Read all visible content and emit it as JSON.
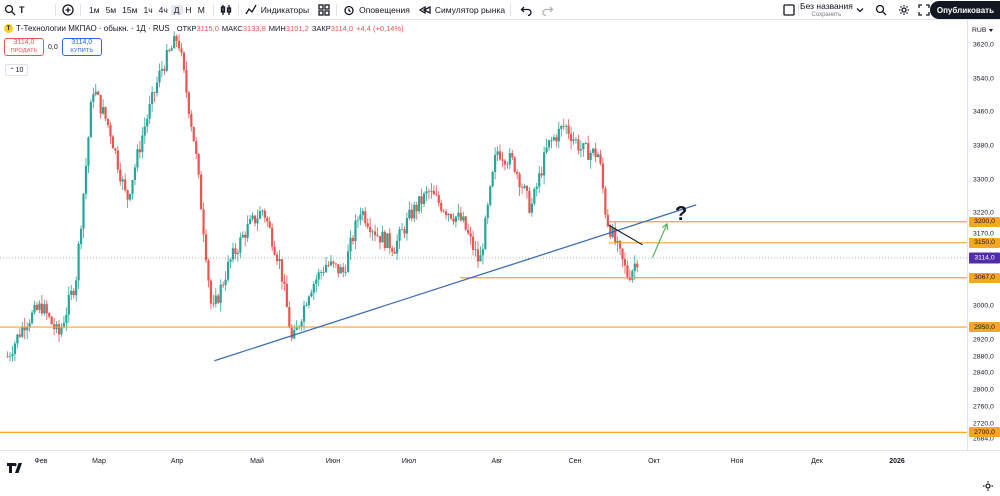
{
  "toolbar": {
    "symbol": "T",
    "timeframes": [
      "1м",
      "5м",
      "15м",
      "1ч",
      "4ч",
      "Д",
      "Н",
      "М"
    ],
    "active_timeframe": "Д",
    "indicators_label": "Индикаторы",
    "alerts_label": "Оповещения",
    "replay_label": "Симулятор рынка",
    "layout_name": "Без названия",
    "layout_status": "Сохранить",
    "publish_label": "Опубликовать"
  },
  "legend": {
    "title": "Т-Технологии МКПАО · обыкн. · 1Д · RUS",
    "open_label": "ОТКР",
    "open": "3115,0",
    "high_label": "МАКС",
    "high": "3133,8",
    "low_label": "МИН",
    "low": "3101,2",
    "close_label": "ЗАКР",
    "close": "3114,0",
    "change": "+4,4 (+0,14%)"
  },
  "trade": {
    "sell_price": "3114,0",
    "sell_label": "ПРОДАТЬ",
    "spread": "0,0",
    "buy_price": "3114,0",
    "buy_label": "КУПИТЬ"
  },
  "indicators_count": "10",
  "price_scale": {
    "currency": "RUB",
    "ticks": [
      "3620,0",
      "3540,0",
      "3460,0",
      "3380,0",
      "3300,0",
      "3220,0",
      "3170,0",
      "3000,0",
      "2920,0",
      "2880,0",
      "2840,0",
      "2800,0",
      "2760,0",
      "2720,0",
      "2684,0"
    ],
    "tick_values": [
      3620,
      3540,
      3460,
      3380,
      3300,
      3220,
      3170,
      3000,
      2920,
      2880,
      2840,
      2800,
      2760,
      2720,
      2684
    ],
    "current_price": "3114,0",
    "current_value": 3114
  },
  "levels": [
    {
      "label": "3200,0",
      "value": 3200
    },
    {
      "label": "3150,0",
      "value": 3150
    },
    {
      "label": "3067,0",
      "value": 3067
    },
    {
      "label": "2950,0",
      "value": 2950
    },
    {
      "label": "2700,0",
      "value": 2700
    }
  ],
  "time_scale": {
    "labels": [
      "Фев",
      "Мар",
      "Апр",
      "Май",
      "Июн",
      "Июл",
      "Авг",
      "Сен",
      "Окт",
      "Ноя",
      "Дек",
      "2026"
    ]
  },
  "annotation": {
    "question": "?"
  },
  "colors": {
    "up": "#26a69a",
    "down": "#ef5350",
    "level": "#f5a623",
    "trendline": "#3d6fb6",
    "arrow": "#4caf50",
    "current": "#512da8"
  },
  "chart_data": {
    "type": "candlestick",
    "ylim": [
      2670,
      3660
    ],
    "trendline": {
      "from": [
        "2025-04-05",
        2870
      ],
      "to": [
        "2025-10-20",
        3240
      ]
    },
    "drawn_line": {
      "from": [
        "2025-09-14",
        3192
      ],
      "to": [
        "2025-09-28",
        3145
      ]
    },
    "projection_arrow": {
      "from": [
        "2025-10-02",
        3115
      ],
      "to": [
        "2025-10-08",
        3195
      ]
    },
    "path": [
      [
        "2025-01-10",
        2880
      ],
      [
        "2025-01-17",
        2960
      ],
      [
        "2025-01-24",
        3000
      ],
      [
        "2025-01-31",
        2930
      ],
      [
        "2025-02-07",
        3060
      ],
      [
        "2025-02-11",
        3320
      ],
      [
        "2025-02-14",
        3520
      ],
      [
        "2025-02-21",
        3420
      ],
      [
        "2025-02-28",
        3250
      ],
      [
        "2025-03-07",
        3420
      ],
      [
        "2025-03-14",
        3560
      ],
      [
        "2025-03-21",
        3640
      ],
      [
        "2025-03-28",
        3380
      ],
      [
        "2025-04-01",
        3160
      ],
      [
        "2025-04-04",
        2980
      ],
      [
        "2025-04-11",
        3100
      ],
      [
        "2025-04-18",
        3180
      ],
      [
        "2025-04-25",
        3230
      ],
      [
        "2025-05-02",
        3100
      ],
      [
        "2025-05-07",
        2910
      ],
      [
        "2025-05-14",
        3040
      ],
      [
        "2025-05-21",
        3100
      ],
      [
        "2025-05-28",
        3080
      ],
      [
        "2025-06-04",
        3230
      ],
      [
        "2025-06-11",
        3170
      ],
      [
        "2025-06-18",
        3140
      ],
      [
        "2025-06-25",
        3220
      ],
      [
        "2025-07-02",
        3270
      ],
      [
        "2025-07-09",
        3230
      ],
      [
        "2025-07-16",
        3200
      ],
      [
        "2025-07-23",
        3100
      ],
      [
        "2025-07-30",
        3370
      ],
      [
        "2025-08-06",
        3340
      ],
      [
        "2025-08-13",
        3230
      ],
      [
        "2025-08-20",
        3380
      ],
      [
        "2025-08-27",
        3430
      ],
      [
        "2025-09-03",
        3370
      ],
      [
        "2025-09-10",
        3360
      ],
      [
        "2025-09-13",
        3210
      ],
      [
        "2025-09-18",
        3130
      ],
      [
        "2025-09-22",
        3070
      ],
      [
        "2025-09-26",
        3114
      ]
    ]
  }
}
